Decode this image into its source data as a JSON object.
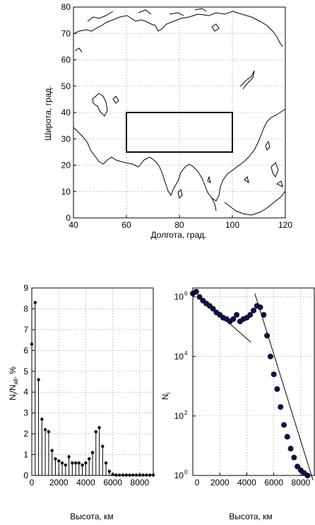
{
  "chart_data": [
    {
      "type": "map",
      "xlabel": "Долгота, град.",
      "ylabel": "Широта, град.",
      "xlim": [
        40,
        120
      ],
      "ylim": [
        0,
        80
      ],
      "xticks": [
        40,
        60,
        80,
        100,
        120
      ],
      "yticks": [
        0,
        10,
        20,
        30,
        40,
        50,
        60,
        70,
        80
      ],
      "grid": true,
      "region_box": {
        "lon": [
          60,
          100
        ],
        "lat": [
          25,
          40
        ]
      }
    },
    {
      "type": "stem",
      "xlabel": "Высота, км",
      "ylabel_main": "N",
      "ylabel_sub": "i",
      "ylabel_mid": "/N",
      "ylabel_sub2": "all",
      "ylabel_tail": ", %",
      "xlim": [
        0,
        9000
      ],
      "ylim": [
        0,
        9
      ],
      "xticks": [
        0,
        2000,
        4000,
        6000,
        8000
      ],
      "yticks": [
        0,
        1,
        2,
        3,
        4,
        5,
        6,
        7,
        8,
        9
      ],
      "grid": true,
      "x": [
        0,
        250,
        500,
        750,
        1000,
        1250,
        1500,
        1750,
        2000,
        2250,
        2500,
        2750,
        3000,
        3250,
        3500,
        3750,
        4000,
        4250,
        4500,
        4750,
        5000,
        5250,
        5500,
        5750,
        6000,
        6250,
        6500,
        6750,
        7000,
        7250,
        7500,
        7750,
        8000,
        8250,
        8500,
        8750,
        9000
      ],
      "values": [
        6.3,
        8.3,
        4.6,
        2.7,
        2.2,
        2.1,
        1.2,
        0.8,
        0.7,
        0.6,
        0.5,
        0.9,
        0.6,
        0.6,
        0.6,
        0.5,
        0.6,
        0.8,
        1.1,
        2.1,
        2.3,
        1.4,
        0.6,
        0.2,
        0.05,
        0.02,
        0.02,
        0.02,
        0.02,
        0.02,
        0.02,
        0.02,
        0.02,
        0.02,
        0.02,
        0.02,
        0.02
      ]
    },
    {
      "type": "scatter",
      "scale_y": "log",
      "xlabel": "Высота, км",
      "ylabel_main": "N",
      "ylabel_sub": "i",
      "xlim": [
        0,
        9000
      ],
      "ylim": [
        1,
        2000000
      ],
      "xticks": [
        0,
        2000,
        4000,
        6000,
        8000
      ],
      "xtick_labels": [
        "0",
        "2000",
        "4000",
        "6000",
        "8000"
      ],
      "ytick_exponents": [
        "0",
        "2",
        "4",
        "6"
      ],
      "ytick_values": [
        1,
        100,
        10000,
        1000000
      ],
      "ytick_base": "10",
      "grid": true,
      "x": [
        0,
        250,
        500,
        750,
        1000,
        1250,
        1500,
        1750,
        2000,
        2250,
        2500,
        2750,
        3000,
        3250,
        3500,
        3750,
        4000,
        4250,
        4500,
        4750,
        5000,
        5250,
        5500,
        5750,
        6000,
        6250,
        6500,
        6750,
        7000,
        7250,
        7500,
        7750,
        8000,
        8250,
        8500,
        8750
      ],
      "y": [
        1300000,
        1500000,
        1000000,
        750000,
        600000,
        500000,
        400000,
        300000,
        250000,
        200000,
        180000,
        150000,
        180000,
        250000,
        150000,
        180000,
        200000,
        250000,
        350000,
        500000,
        450000,
        250000,
        50000,
        10000,
        2500,
        800,
        200,
        50,
        20,
        8,
        4,
        2,
        1.5,
        1.2,
        1.0,
        0.8
      ],
      "fit_lines": [
        {
          "x": [
            500,
            4300
          ],
          "y": [
            1000000,
            30000
          ]
        },
        {
          "x": [
            4600,
            8900
          ],
          "y": [
            1300000,
            0.7
          ]
        }
      ]
    }
  ]
}
